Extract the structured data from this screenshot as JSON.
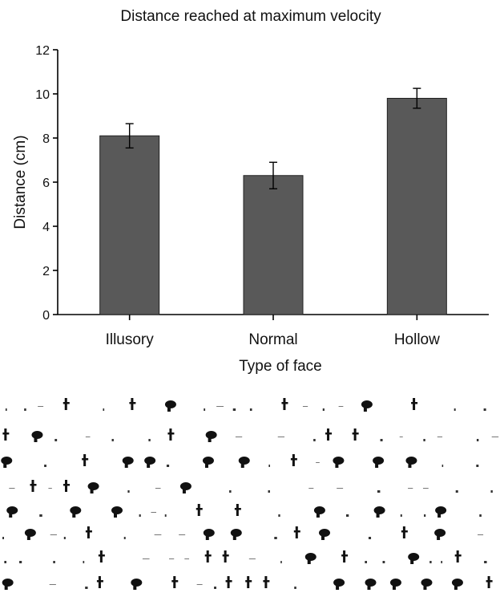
{
  "chart_data": {
    "type": "bar",
    "title": "Distance reached at maximum velocity",
    "xlabel": "Type of face",
    "ylabel": "Distance (cm)",
    "ylim": [
      0,
      12
    ],
    "yticks": [
      0,
      2,
      4,
      6,
      8,
      10,
      12
    ],
    "categories": [
      "Illusory",
      "Normal",
      "Hollow"
    ],
    "values": [
      8.1,
      6.3,
      9.8
    ],
    "error": [
      0.55,
      0.6,
      0.45
    ],
    "bar_color": "#595959",
    "grid": false,
    "legend": "none"
  }
}
